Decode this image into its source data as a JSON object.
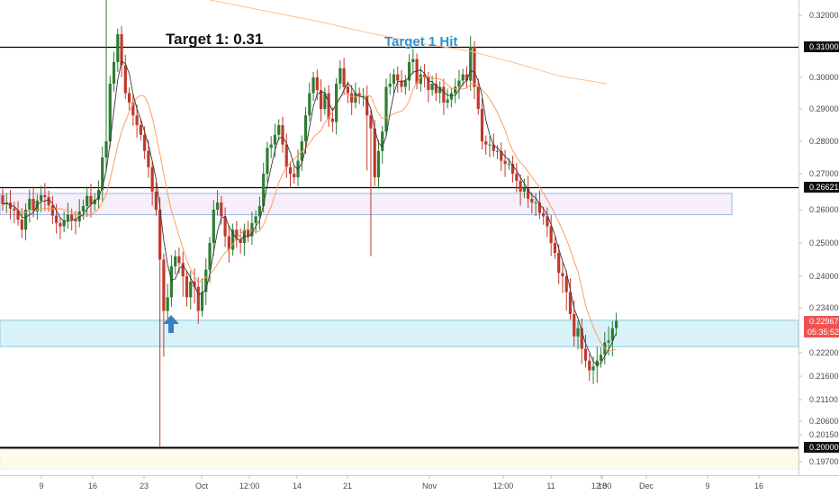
{
  "chart_data": {
    "type": "candlestick",
    "y_ticks": [
      "0.32000",
      "0.31000",
      "0.30000",
      "0.29000",
      "0.28000",
      "0.27000",
      "0.26621",
      "0.26000",
      "0.25000",
      "0.24000",
      "0.23400",
      "0.22967",
      "0.22200",
      "0.21600",
      "0.21100",
      "0.20600",
      "0.20150",
      "0.20000",
      "0.19700"
    ],
    "y_tick_values": [
      0.32,
      0.31,
      0.3,
      0.29,
      0.28,
      0.27,
      0.26621,
      0.26,
      0.25,
      0.24,
      0.234,
      0.22967,
      0.222,
      0.216,
      0.211,
      0.206,
      0.2015,
      0.2,
      0.197
    ],
    "y_tick_plain": [
      "0.32000",
      "0.30000",
      "0.29000",
      "0.28000",
      "0.27000",
      "0.26000",
      "0.25000",
      "0.24000",
      "0.23400",
      "0.22200",
      "0.21600",
      "0.21100",
      "0.20600",
      "0.20150",
      "0.19700"
    ],
    "x_ticks": [
      "9",
      "16",
      "23",
      "Oct",
      "12:00",
      "14",
      "21",
      "Nov",
      "12:00",
      "11",
      "18",
      "12:00",
      "Dec",
      "9",
      "16"
    ],
    "horizontal_levels": [
      {
        "value": 0.31,
        "label": "0.31000"
      },
      {
        "value": 0.26621,
        "label": "0.26621"
      },
      {
        "value": 0.2,
        "label": "0.20000"
      }
    ],
    "current_price": {
      "label": "0.22967",
      "countdown": "05:35:52",
      "color": "#ef5350"
    },
    "zones": [
      {
        "name": "resistance-zone",
        "y1": 0.2585,
        "y2": 0.2645,
        "fill": "#f6eef8",
        "stroke": "#9bb8ea"
      },
      {
        "name": "support-zone",
        "y1": 0.2235,
        "y2": 0.23,
        "fill": "#d9f2f8",
        "stroke": "#8fc8dc"
      },
      {
        "name": "bottom-zone",
        "y1": 0.1955,
        "y2": 0.1995,
        "fill": "#fffbe9",
        "stroke": "#eeeeee"
      }
    ],
    "annotations": [
      {
        "text": "Target 1: 0.31",
        "style": "black"
      },
      {
        "text": "Target 1 Hit",
        "style": "blue"
      }
    ],
    "series": [
      {
        "name": "candles",
        "color_up": "#2e7d32",
        "color_down": "#c0392b",
        "closes": [
          0.2615,
          0.262,
          0.2603,
          0.2598,
          0.257,
          0.254,
          0.26,
          0.263,
          0.2595,
          0.2625,
          0.264,
          0.2635,
          0.2612,
          0.2582,
          0.256,
          0.255,
          0.2568,
          0.2585,
          0.257,
          0.2565,
          0.2595,
          0.261,
          0.2638,
          0.2615,
          0.2628,
          0.2655,
          0.275,
          0.28,
          0.298,
          0.305,
          0.314,
          0.304,
          0.295,
          0.292,
          0.288,
          0.285,
          0.282,
          0.277,
          0.272,
          0.265,
          0.26,
          0.245,
          0.233,
          0.236,
          0.243,
          0.246,
          0.244,
          0.24,
          0.236,
          0.239,
          0.238,
          0.233,
          0.237,
          0.242,
          0.25,
          0.26,
          0.262,
          0.258,
          0.252,
          0.248,
          0.254,
          0.251,
          0.25,
          0.254,
          0.252,
          0.256,
          0.258,
          0.261,
          0.27,
          0.278,
          0.279,
          0.282,
          0.285,
          0.279,
          0.272,
          0.27,
          0.269,
          0.274,
          0.28,
          0.288,
          0.295,
          0.3,
          0.296,
          0.29,
          0.295,
          0.287,
          0.286,
          0.298,
          0.303,
          0.297,
          0.295,
          0.292,
          0.295,
          0.294,
          0.294,
          0.288,
          0.284,
          0.269,
          0.277,
          0.283,
          0.297,
          0.298,
          0.301,
          0.299,
          0.297,
          0.299,
          0.305,
          0.306,
          0.298,
          0.301,
          0.3,
          0.296,
          0.298,
          0.295,
          0.297,
          0.292,
          0.293,
          0.295,
          0.297,
          0.299,
          0.301,
          0.299,
          0.31,
          0.297,
          0.29,
          0.28,
          0.279,
          0.279,
          0.277,
          0.277,
          0.274,
          0.273,
          0.273,
          0.27,
          0.268,
          0.265,
          0.266,
          0.263,
          0.262,
          0.262,
          0.259,
          0.258,
          0.255,
          0.25,
          0.247,
          0.241,
          0.24,
          0.237,
          0.232,
          0.226,
          0.228,
          0.223,
          0.22,
          0.2175,
          0.2185,
          0.22,
          0.2215,
          0.2245,
          0.225,
          0.228,
          0.2298
        ]
      },
      {
        "name": "ma-fast",
        "color": "#3a3a3a"
      },
      {
        "name": "ma-orange",
        "color": "#ff9d5c"
      },
      {
        "name": "ma-200",
        "color": "#ffc090",
        "points": [
          [
            0.235,
            0.3265
          ],
          [
            0.27,
            0.3245
          ],
          [
            0.33,
            0.3215
          ],
          [
            0.4,
            0.318
          ],
          [
            0.46,
            0.3145
          ],
          [
            0.52,
            0.3115
          ],
          [
            0.59,
            0.3085
          ],
          [
            0.655,
            0.304
          ],
          [
            0.7,
            0.3005
          ],
          [
            0.76,
            0.298
          ]
        ]
      }
    ]
  }
}
